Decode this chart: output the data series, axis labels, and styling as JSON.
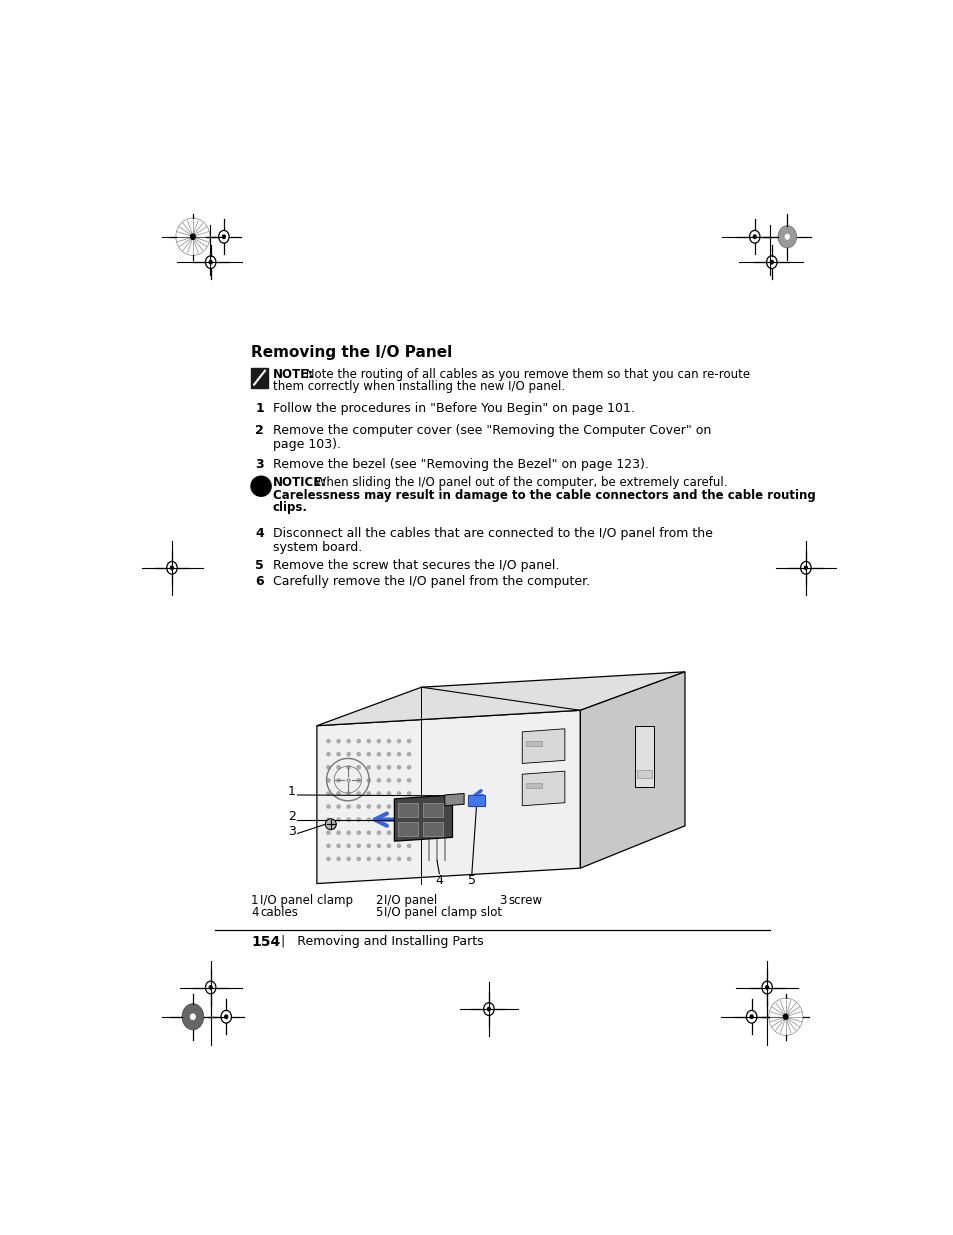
{
  "bg_color": "#ffffff",
  "title": "Removing the I/O Panel",
  "note_label": "NOTE:",
  "note_text_1": " Note the routing of all cables as you remove them so that you can re-route",
  "note_text_2": "them correctly when installing the new I/O panel.",
  "notice_label": "NOTICE:",
  "notice_text_1": " When sliding the I/O panel out of the computer, be extremely careful.",
  "notice_text_2": "Carelessness may result in damage to the cable connectors and the cable routing",
  "notice_text_3": "clips.",
  "step1": "Follow the procedures in \"Before You Begin\" on page 101.",
  "step2a": "Remove the computer cover (see \"Removing the Computer Cover\" on",
  "step2b": "page 103).",
  "step3": "Remove the bezel (see \"Removing the Bezel\" on page 123).",
  "step4a": "Disconnect all the cables that are connected to the I/O panel from the",
  "step4b": "system board.",
  "step5": "Remove the screw that secures the I/O panel.",
  "step6": "Carefully remove the I/O panel from the computer.",
  "legend_row1": [
    [
      "1",
      "I/O panel clamp"
    ],
    [
      "2",
      "I/O panel"
    ],
    [
      "3",
      "screw"
    ]
  ],
  "legend_row2": [
    [
      "4",
      "cables"
    ],
    [
      "5",
      "I/O panel clamp slot"
    ]
  ],
  "page_num": "154",
  "page_label": "Removing and Installing Parts",
  "text_color": "#000000",
  "blue_arrow": "#3366dd"
}
